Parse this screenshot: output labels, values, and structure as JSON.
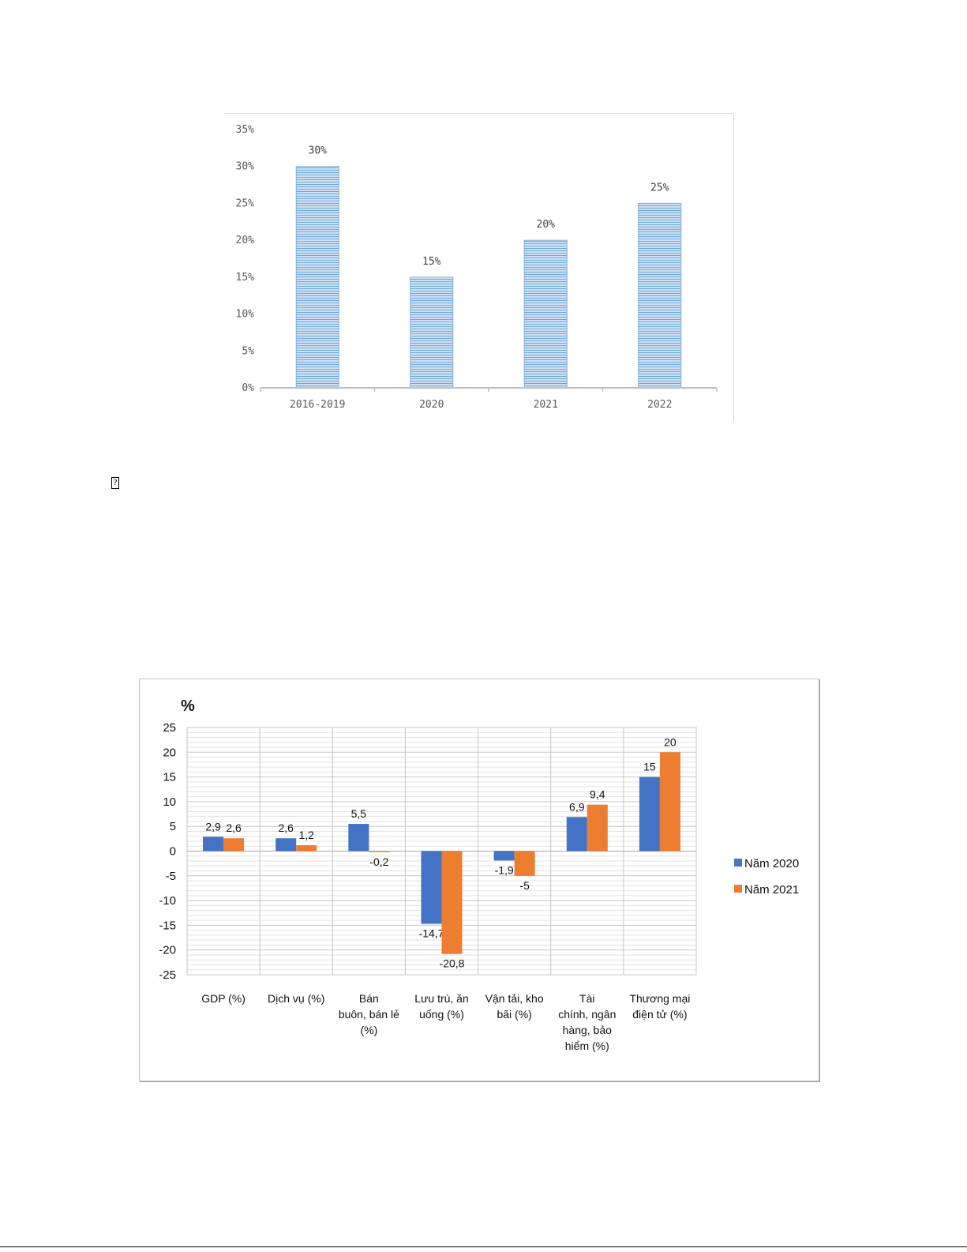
{
  "chart_data": [
    {
      "type": "bar",
      "categories": [
        "2016-2019",
        "2020",
        "2021",
        "2022"
      ],
      "values": [
        30,
        15,
        20,
        25
      ],
      "data_labels": [
        "30%",
        "15%",
        "20%",
        "25%"
      ],
      "y_ticks": [
        "0%",
        "5%",
        "10%",
        "15%",
        "20%",
        "25%",
        "30%",
        "35%"
      ],
      "ylim": [
        0,
        35
      ],
      "grid": false,
      "legend": "none",
      "colors": {
        "bar_fill": "#bcd6f0",
        "bar_stripe": "#5b9bd5",
        "axis": "#bfbfbf"
      }
    },
    {
      "type": "bar",
      "unit_label": "%",
      "categories": [
        [
          "GDP (%)"
        ],
        [
          "Dịch vụ (%)"
        ],
        [
          "Bán",
          "buôn, bán lẻ",
          "(%)"
        ],
        [
          "Lưu trú, ăn",
          "uống (%)"
        ],
        [
          "Vận tải, kho",
          "bãi (%)"
        ],
        [
          "Tài",
          "chính, ngân",
          "hàng, bảo",
          "hiểm (%)"
        ],
        [
          "Thương mại",
          "điện tử (%)"
        ]
      ],
      "series": [
        {
          "name": "Năm 2020",
          "color": "#4472c4",
          "values": [
            2.9,
            2.6,
            5.5,
            -14.7,
            -1.9,
            6.9,
            15
          ],
          "labels": [
            "2,9",
            "2,6",
            "5,5",
            "-14,7",
            "-1,9",
            "6,9",
            "15"
          ]
        },
        {
          "name": "Năm 2021",
          "color": "#ed7d31",
          "values": [
            2.6,
            1.2,
            -0.2,
            -20.8,
            -5,
            9.4,
            20
          ],
          "labels": [
            "2,6",
            "1,2",
            "-0,2",
            "-20,8",
            "-5",
            "9,4",
            "20"
          ]
        }
      ],
      "y_ticks": [
        "-25",
        "-20",
        "-15",
        "-10",
        "-5",
        "0",
        "5",
        "10",
        "15",
        "20",
        "25"
      ],
      "ylim": [
        -25,
        25
      ],
      "grid": true,
      "legend": "right"
    }
  ],
  "glyph": {
    "missing_char": "?"
  }
}
